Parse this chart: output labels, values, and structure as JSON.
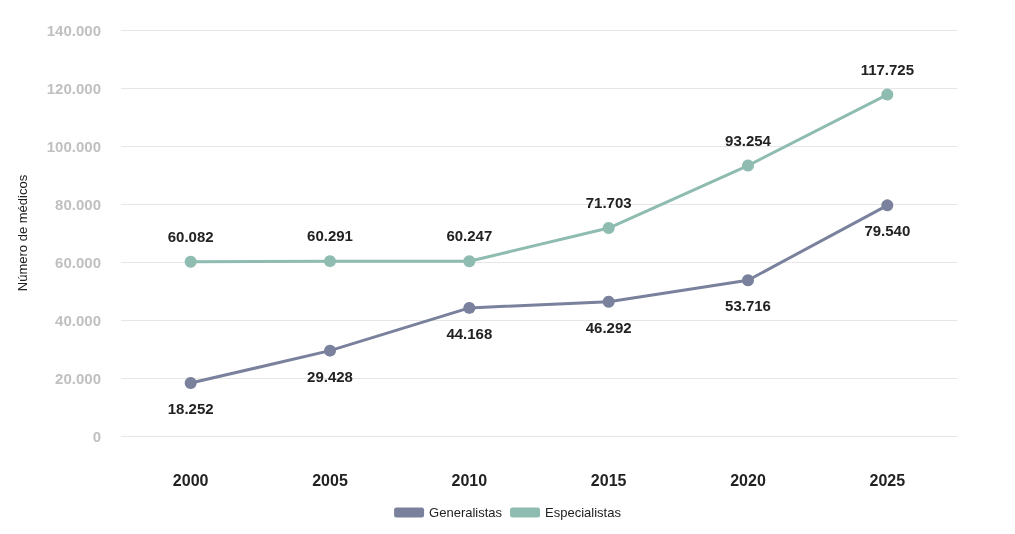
{
  "chart_data": {
    "type": "line",
    "ylabel": "Número de médicos",
    "categories": [
      "2000",
      "2005",
      "2010",
      "2015",
      "2020",
      "2025"
    ],
    "series": [
      {
        "name": "Generalistas",
        "color": "#7a819c",
        "values": [
          18252,
          29428,
          44168,
          46292,
          53716,
          79540
        ],
        "value_labels": [
          "18.252",
          "29.428",
          "44.168",
          "46.292",
          "53.716",
          "79.540"
        ]
      },
      {
        "name": "Especialistas",
        "color": "#8fbcb0",
        "values": [
          60082,
          60291,
          60247,
          71703,
          93254,
          117725
        ],
        "value_labels": [
          "60.082",
          "60.291",
          "60.247",
          "71.703",
          "93.254",
          "117.725"
        ]
      }
    ],
    "ylim": [
      0,
      140000
    ],
    "yticks": [
      {
        "value": 0,
        "label": "0"
      },
      {
        "value": 20000,
        "label": "20.000"
      },
      {
        "value": 40000,
        "label": "40.000"
      },
      {
        "value": 60000,
        "label": "60.000"
      },
      {
        "value": 80000,
        "label": "80.000"
      },
      {
        "value": 100000,
        "label": "100.000"
      },
      {
        "value": 120000,
        "label": "120.000"
      },
      {
        "value": 140000,
        "label": "140.000"
      }
    ],
    "grid": "y",
    "legend": "bottom",
    "marker": "circle",
    "line_style": "solid"
  }
}
